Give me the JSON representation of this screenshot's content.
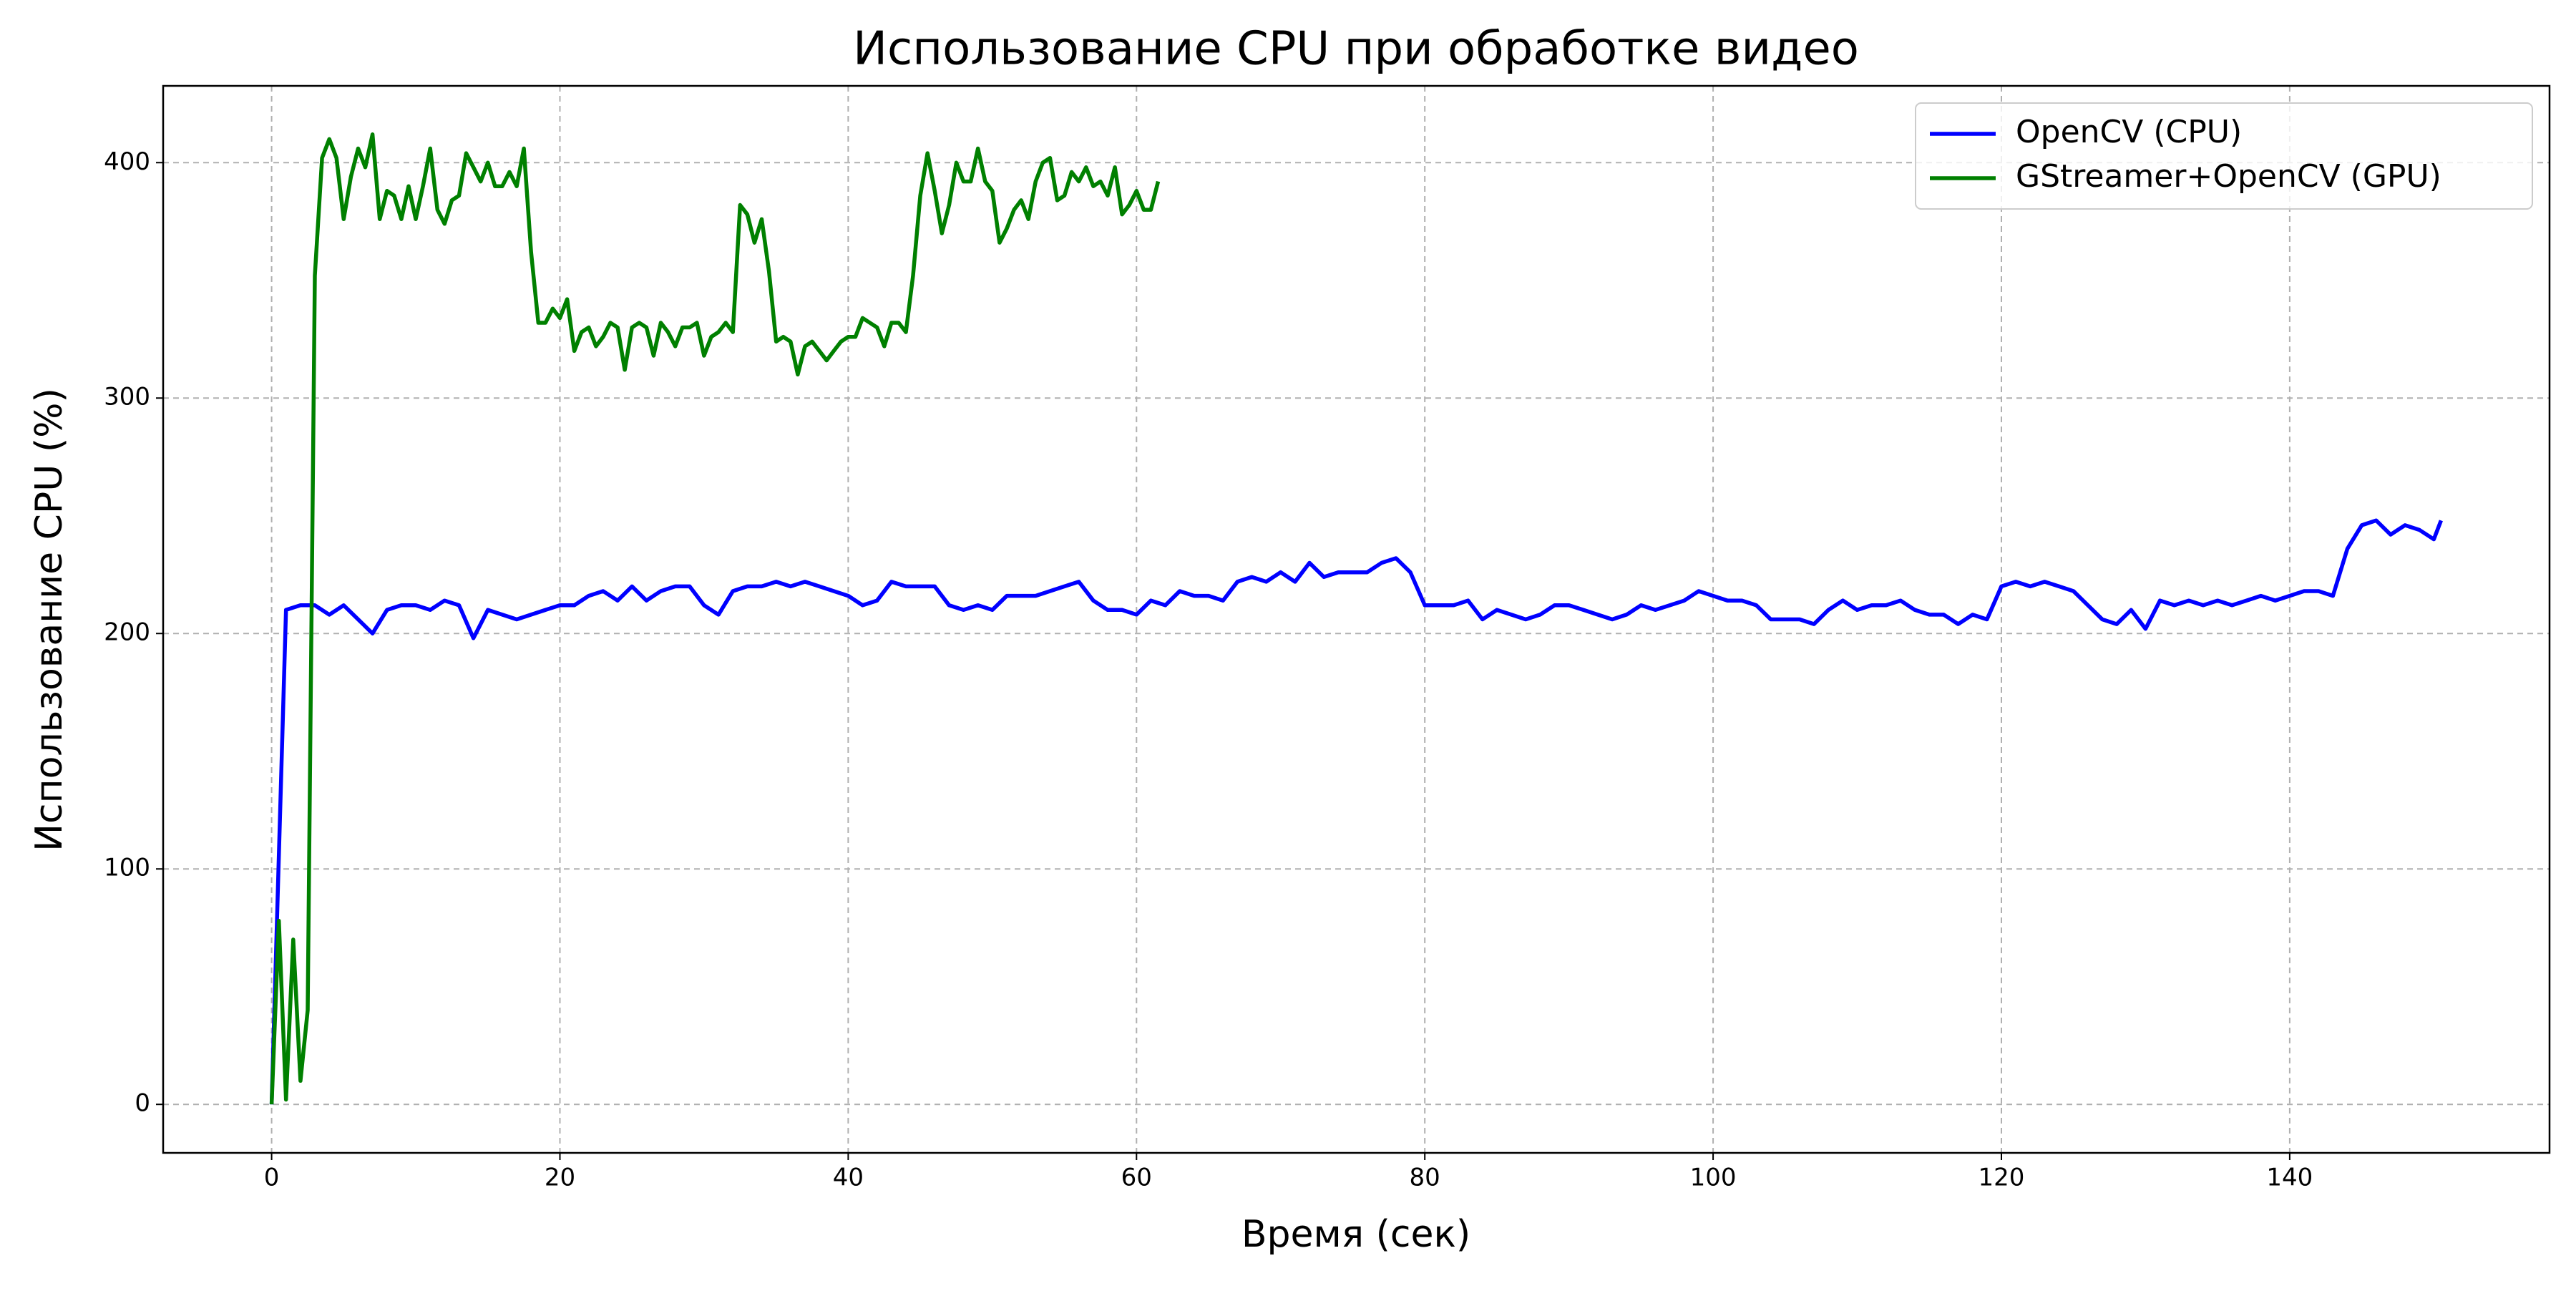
{
  "chart_data": {
    "type": "line",
    "title": "Использование CPU при обработке видео",
    "x_label": "Время (сек)",
    "y_label": "Использование CPU (%)",
    "xlim": [
      -7.525,
      158.025
    ],
    "ylim": [
      -20.6,
      432.6
    ],
    "xticks": [
      0,
      20,
      40,
      60,
      80,
      100,
      120,
      140
    ],
    "yticks": [
      0,
      100,
      200,
      300,
      400
    ],
    "grid": true,
    "legend_loc": "upper right",
    "series": [
      {
        "name": "OpenCV (CPU)",
        "color": "#0000ff",
        "x": [
          0,
          1,
          2,
          3,
          4,
          5,
          6,
          7,
          8,
          9,
          10,
          11,
          12,
          13,
          14,
          15,
          16,
          17,
          18,
          19,
          20,
          21,
          22,
          23,
          24,
          25,
          26,
          27,
          28,
          29,
          30,
          31,
          32,
          33,
          34,
          35,
          36,
          37,
          38,
          39,
          40,
          41,
          42,
          43,
          44,
          45,
          46,
          47,
          48,
          49,
          50,
          51,
          52,
          53,
          54,
          55,
          56,
          57,
          58,
          59,
          60,
          61,
          62,
          63,
          64,
          65,
          66,
          67,
          68,
          69,
          70,
          71,
          72,
          73,
          74,
          75,
          76,
          77,
          78,
          79,
          80,
          81,
          82,
          83,
          84,
          85,
          86,
          87,
          88,
          89,
          90,
          91,
          92,
          93,
          94,
          95,
          96,
          97,
          98,
          99,
          100,
          101,
          102,
          103,
          104,
          105,
          106,
          107,
          108,
          109,
          110,
          111,
          112,
          113,
          114,
          115,
          116,
          117,
          118,
          119,
          120,
          121,
          122,
          123,
          124,
          125,
          126,
          127,
          128,
          129,
          130,
          131,
          132,
          133,
          134,
          135,
          136,
          137,
          138,
          139,
          140,
          141,
          142,
          143,
          144,
          145,
          146,
          147,
          148,
          149,
          150,
          150.5
        ],
        "values": [
          0,
          210,
          212,
          212,
          208,
          212,
          206,
          200,
          210,
          212,
          212,
          210,
          214,
          212,
          198,
          210,
          208,
          206,
          208,
          210,
          212,
          212,
          216,
          218,
          214,
          220,
          214,
          218,
          220,
          220,
          212,
          208,
          218,
          220,
          220,
          222,
          220,
          222,
          220,
          218,
          216,
          212,
          214,
          222,
          220,
          220,
          220,
          212,
          210,
          212,
          210,
          216,
          216,
          216,
          218,
          220,
          222,
          214,
          210,
          210,
          208,
          214,
          212,
          218,
          216,
          216,
          214,
          222,
          224,
          222,
          226,
          222,
          230,
          224,
          226,
          226,
          226,
          230,
          232,
          226,
          212,
          212,
          212,
          214,
          206,
          210,
          208,
          206,
          208,
          212,
          212,
          210,
          208,
          206,
          208,
          212,
          210,
          212,
          214,
          218,
          216,
          214,
          214,
          212,
          206,
          206,
          206,
          204,
          210,
          214,
          210,
          212,
          212,
          214,
          210,
          208,
          208,
          204,
          208,
          206,
          220,
          222,
          220,
          222,
          220,
          218,
          212,
          206,
          204,
          210,
          202,
          214,
          212,
          214,
          212,
          214,
          212,
          214,
          216,
          214,
          216,
          218,
          218,
          216,
          236,
          246,
          248,
          242,
          246,
          244,
          240,
          248
        ]
      },
      {
        "name": "GStreamer+OpenCV (GPU)",
        "color": "#008000",
        "x": [
          0,
          0.5,
          1,
          1.5,
          2,
          2.5,
          3,
          3.5,
          4,
          4.5,
          5,
          5.5,
          6,
          6.5,
          7,
          7.5,
          8,
          8.5,
          9,
          9.5,
          10,
          10.5,
          11,
          11.5,
          12,
          12.5,
          13,
          13.5,
          14,
          14.5,
          15,
          15.5,
          16,
          16.5,
          17,
          17.5,
          18,
          18.5,
          19,
          19.5,
          20,
          20.5,
          21,
          21.5,
          22,
          22.5,
          23,
          23.5,
          24,
          24.5,
          25,
          25.5,
          26,
          26.5,
          27,
          27.5,
          28,
          28.5,
          29,
          29.5,
          30,
          30.5,
          31,
          31.5,
          32,
          32.5,
          33,
          33.5,
          34,
          34.5,
          35,
          35.5,
          36,
          36.5,
          37,
          37.5,
          38,
          38.5,
          39,
          39.5,
          40,
          40.5,
          41,
          41.5,
          42,
          42.5,
          43,
          43.5,
          44,
          44.5,
          45,
          45.5,
          46,
          46.5,
          47,
          47.5,
          48,
          48.5,
          49,
          49.5,
          50,
          50.5,
          51,
          51.5,
          52,
          52.5,
          53,
          53.5,
          54,
          54.5,
          55,
          55.5,
          56,
          56.5,
          57,
          57.5,
          58,
          58.5,
          59,
          59.5,
          60,
          60.5,
          61,
          61.5
        ],
        "values": [
          0,
          78,
          2,
          70,
          10,
          40,
          352,
          402,
          410,
          402,
          376,
          394,
          406,
          398,
          412,
          376,
          388,
          386,
          376,
          390,
          376,
          390,
          406,
          380,
          374,
          384,
          386,
          404,
          398,
          392,
          400,
          390,
          390,
          396,
          390,
          406,
          362,
          332,
          332,
          338,
          334,
          342,
          320,
          328,
          330,
          322,
          326,
          332,
          330,
          312,
          330,
          332,
          330,
          318,
          332,
          328,
          322,
          330,
          330,
          332,
          318,
          326,
          328,
          332,
          328,
          382,
          378,
          366,
          376,
          354,
          324,
          326,
          324,
          310,
          322,
          324,
          320,
          316,
          320,
          324,
          326,
          326,
          334,
          332,
          330,
          322,
          332,
          332,
          328,
          352,
          386,
          404,
          388,
          370,
          382,
          400,
          392,
          392,
          406,
          392,
          388,
          366,
          372,
          380,
          384,
          376,
          392,
          400,
          402,
          384,
          386,
          396,
          392,
          398,
          390,
          392,
          386,
          398,
          378,
          382,
          388,
          380,
          380,
          392
        ]
      }
    ]
  }
}
